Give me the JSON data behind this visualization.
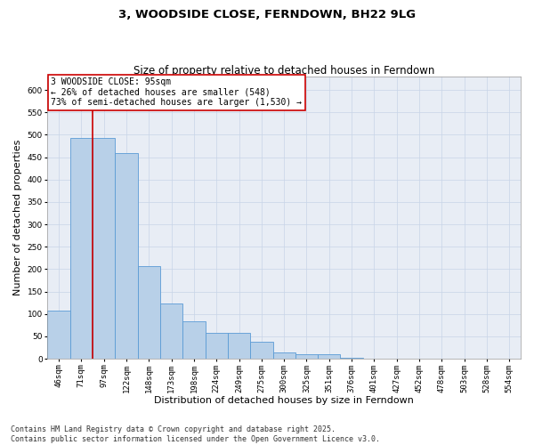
{
  "title": "3, WOODSIDE CLOSE, FERNDOWN, BH22 9LG",
  "subtitle": "Size of property relative to detached houses in Ferndown",
  "xlabel": "Distribution of detached houses by size in Ferndown",
  "ylabel": "Number of detached properties",
  "bar_labels": [
    "46sqm",
    "71sqm",
    "97sqm",
    "122sqm",
    "148sqm",
    "173sqm",
    "198sqm",
    "224sqm",
    "249sqm",
    "275sqm",
    "300sqm",
    "325sqm",
    "351sqm",
    "376sqm",
    "401sqm",
    "427sqm",
    "452sqm",
    "478sqm",
    "503sqm",
    "528sqm",
    "554sqm"
  ],
  "bar_values": [
    107,
    493,
    493,
    460,
    207,
    124,
    83,
    57,
    57,
    38,
    13,
    9,
    10,
    3,
    1,
    1,
    1,
    0,
    0,
    0,
    0
  ],
  "bar_color": "#b8d0e8",
  "bar_edge_color": "#5b9bd5",
  "vline_x": 1.5,
  "vline_color": "#cc0000",
  "annotation_text": "3 WOODSIDE CLOSE: 95sqm\n← 26% of detached houses are smaller (548)\n73% of semi-detached houses are larger (1,530) →",
  "annotation_box_color": "#ffffff",
  "annotation_box_edge": "#cc0000",
  "ylim": [
    0,
    630
  ],
  "yticks": [
    0,
    50,
    100,
    150,
    200,
    250,
    300,
    350,
    400,
    450,
    500,
    550,
    600
  ],
  "background_color": "#ffffff",
  "plot_bg_color": "#e8edf5",
  "grid_color": "#c8d4e8",
  "footnote": "Contains HM Land Registry data © Crown copyright and database right 2025.\nContains public sector information licensed under the Open Government Licence v3.0.",
  "title_fontsize": 9.5,
  "subtitle_fontsize": 8.5,
  "xlabel_fontsize": 8,
  "ylabel_fontsize": 8,
  "tick_fontsize": 6.5,
  "annotation_fontsize": 7,
  "footnote_fontsize": 6
}
